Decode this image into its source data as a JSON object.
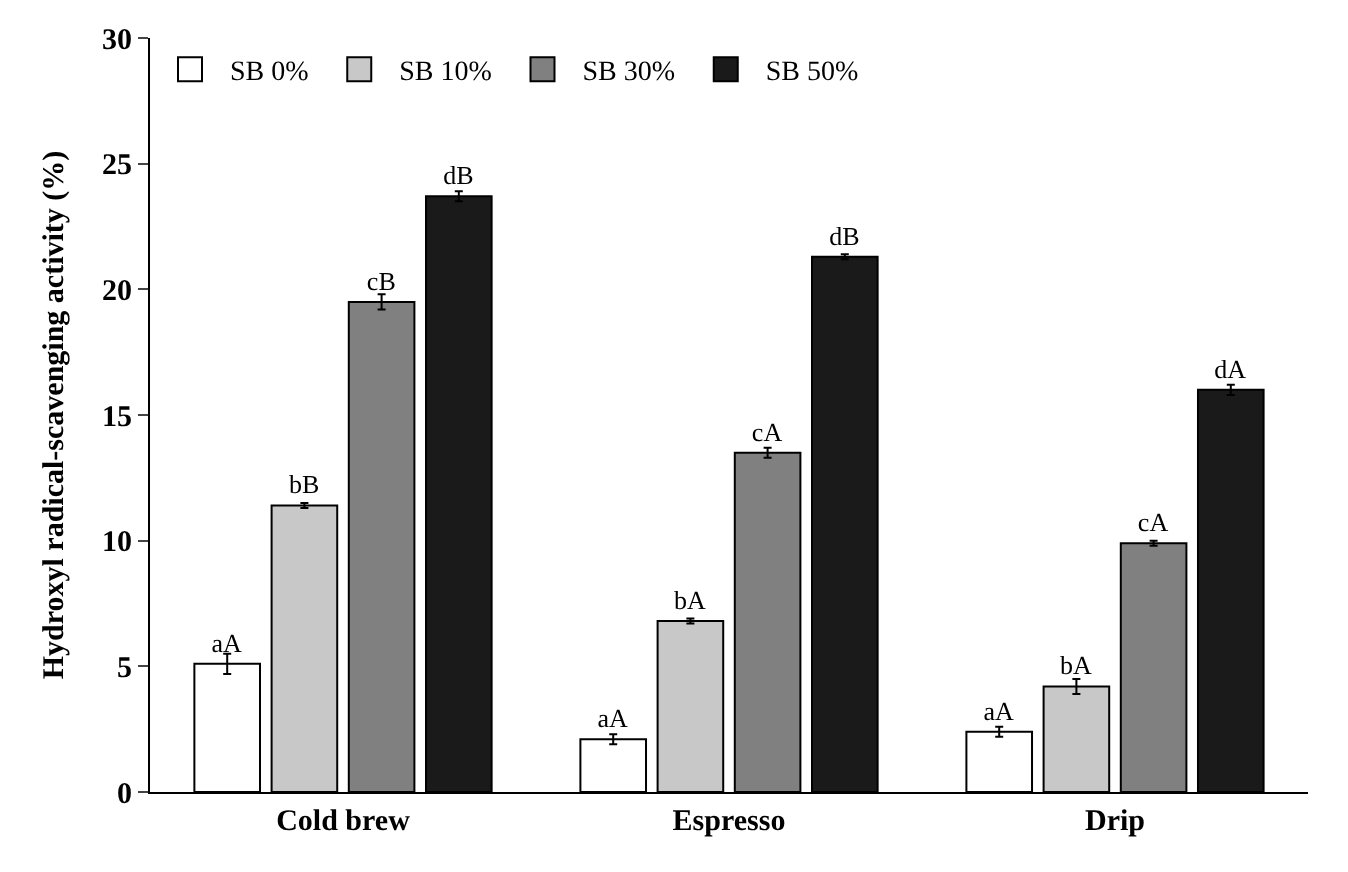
{
  "chart_data": {
    "type": "bar",
    "ylabel": "Hydroxyl radical-scavenging activity (%)",
    "categories": [
      "Cold brew",
      "Espresso",
      "Drip"
    ],
    "series": [
      {
        "name": "SB 0%",
        "color": "#ffffff",
        "values": [
          5.1,
          2.1,
          2.4
        ],
        "errors": [
          0.4,
          0.2,
          0.2
        ],
        "value_labels": [
          "aA",
          "aA",
          "aA"
        ]
      },
      {
        "name": "SB 10%",
        "color": "#c8c8c8",
        "values": [
          11.4,
          6.8,
          4.2
        ],
        "errors": [
          0.1,
          0.1,
          0.3
        ],
        "value_labels": [
          "bB",
          "bA",
          "bA"
        ]
      },
      {
        "name": "SB 30%",
        "color": "#808080",
        "values": [
          19.5,
          13.5,
          9.9
        ],
        "errors": [
          0.3,
          0.2,
          0.1
        ],
        "value_labels": [
          "cB",
          "cA",
          "cA"
        ]
      },
      {
        "name": "SB 50%",
        "color": "#1a1a1a",
        "values": [
          23.7,
          21.3,
          16.0
        ],
        "errors": [
          0.2,
          0.1,
          0.2
        ],
        "value_labels": [
          "dB",
          "dB",
          "dA"
        ]
      }
    ],
    "ylim": [
      0,
      30
    ],
    "yticks": [
      0,
      5,
      10,
      15,
      20,
      25,
      30
    ],
    "legend": "top left"
  }
}
